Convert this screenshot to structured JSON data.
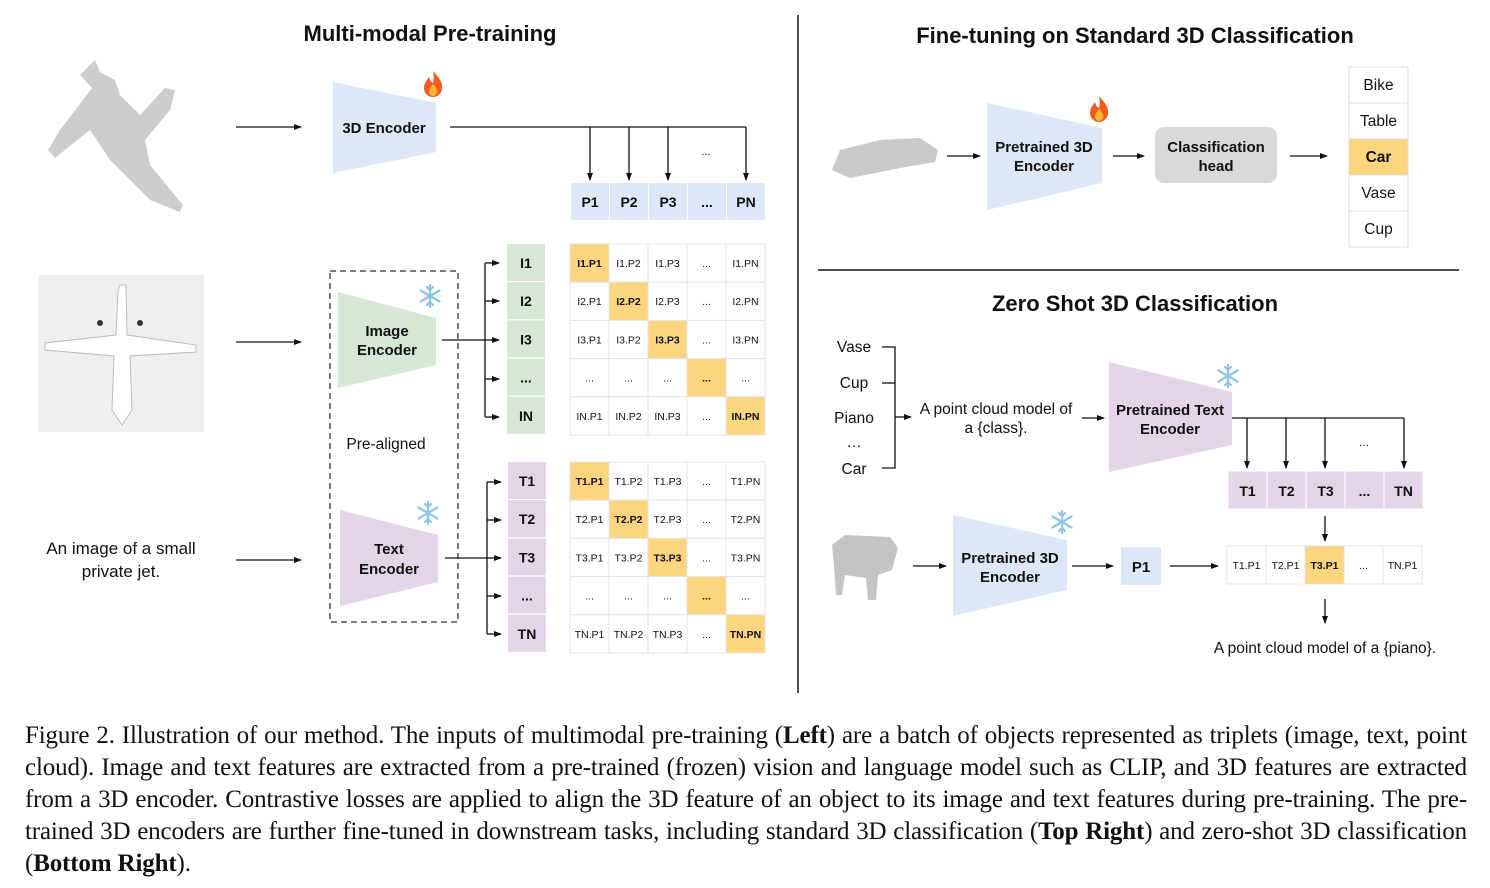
{
  "left": {
    "title": "Multi-modal Pre-training",
    "encoder_3d": "3D Encoder",
    "image_encoder": [
      "Image",
      "Encoder"
    ],
    "text_encoder": [
      "Text",
      "Encoder"
    ],
    "pre_aligned": "Pre-aligned",
    "text_input": [
      "An image of a small",
      "private jet."
    ],
    "point_features": [
      "P1",
      "P2",
      "P3",
      "...",
      "PN"
    ],
    "points_ellipsis": "...",
    "image_features": [
      "I1",
      "I2",
      "I3",
      "...",
      "IN"
    ],
    "text_features": [
      "T1",
      "T2",
      "T3",
      "...",
      "TN"
    ],
    "image_matrix": [
      [
        "I1.P1",
        "I1.P2",
        "I1.P3",
        "...",
        "I1.PN"
      ],
      [
        "I2.P1",
        "I2.P2",
        "I2.P3",
        "...",
        "I2.PN"
      ],
      [
        "I3.P1",
        "I3.P2",
        "I3.P3",
        "...",
        "I3.PN"
      ],
      [
        "...",
        "...",
        "...",
        "...",
        "..."
      ],
      [
        "IN.P1",
        "IN.P2",
        "IN.P3",
        "...",
        "IN.PN"
      ]
    ],
    "text_matrix": [
      [
        "T1.P1",
        "T1.P2",
        "T1.P3",
        "...",
        "T1.PN"
      ],
      [
        "T2.P1",
        "T2.P2",
        "T2.P3",
        "...",
        "T2.PN"
      ],
      [
        "T3.P1",
        "T3.P2",
        "T3.P3",
        "...",
        "T3.PN"
      ],
      [
        "...",
        "...",
        "...",
        "...",
        "..."
      ],
      [
        "TN.P1",
        "TN.P2",
        "TN.P3",
        "...",
        "TN.PN"
      ]
    ]
  },
  "finetune": {
    "title": "Fine-tuning on Standard 3D Classification",
    "encoder": [
      "Pretrained 3D",
      "Encoder"
    ],
    "head": [
      "Classification",
      "head"
    ],
    "classes": [
      "Bike",
      "Table",
      "Car",
      "Vase",
      "Cup"
    ],
    "selected_class": "Car"
  },
  "zeroshot": {
    "title": "Zero Shot 3D Classification",
    "classes": [
      "Vase",
      "Cup",
      "Piano",
      "…",
      "Car"
    ],
    "prompt": [
      "A point cloud model of",
      "a {class}."
    ],
    "text_encoder": [
      "Pretrained Text",
      "Encoder"
    ],
    "text_features": [
      "T1",
      "T2",
      "T3",
      "...",
      "TN"
    ],
    "features_ellipsis": "...",
    "encoder_3d": [
      "Pretrained 3D",
      "Encoder"
    ],
    "point_feature": "P1",
    "scores": [
      "T1.P1",
      "T2.P1",
      "T3.P1",
      "...",
      "TN.P1"
    ],
    "selected_score": "T3.P1",
    "result": "A point cloud model of a {piano}."
  },
  "icons": {
    "trainable": "flame-icon",
    "frozen": "snowflake-icon"
  },
  "colors": {
    "encoder_3d": "#dce8f8",
    "image": "#d5e8d4",
    "text": "#e1d5e7",
    "highlight": "#fdd57e",
    "head": "#d9d9d9"
  },
  "caption": [
    {
      "t": "Figure 2. Illustration of our method. The inputs of multimodal pre-training (",
      "b": false
    },
    {
      "t": "Left",
      "b": true
    },
    {
      "t": ") are a batch of objects represented as triplets (image, text, point cloud). Image and text features are extracted from a pre-trained (frozen) vision and language model such as CLIP, and 3D features are extracted from a 3D encoder. Contrastive losses are applied to align the 3D feature of an object to its image and text features during pre-training. The pre-trained 3D encoders are further fine-tuned in downstream tasks, including standard 3D classification (",
      "b": false
    },
    {
      "t": "Top Right",
      "b": true
    },
    {
      "t": ") and zero-shot 3D classification (",
      "b": false
    },
    {
      "t": "Bottom Right",
      "b": true
    },
    {
      "t": ").",
      "b": false
    }
  ]
}
